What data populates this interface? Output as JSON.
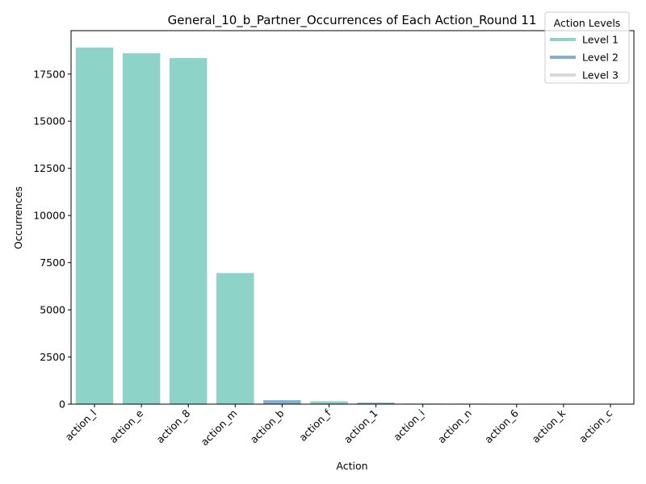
{
  "chart_data": {
    "type": "bar",
    "title": "General_10_b_Partner_Occurrences of Each Action_Round 11",
    "xlabel": "Action",
    "ylabel": "Occurrences",
    "categories": [
      "action_l",
      "action_e",
      "action_8",
      "action_m",
      "action_b",
      "action_f",
      "action_1",
      "action_i",
      "action_n",
      "action_6",
      "action_k",
      "action_c"
    ],
    "values": [
      18900,
      18600,
      18350,
      6950,
      210,
      150,
      80,
      30,
      25,
      20,
      8,
      5
    ],
    "levels": [
      1,
      1,
      1,
      1,
      2,
      1,
      2,
      1,
      1,
      1,
      1,
      1
    ],
    "ylim": [
      0,
      19800
    ],
    "yticks": [
      0,
      2500,
      5000,
      7500,
      10000,
      12500,
      15000,
      17500
    ],
    "ytick_labels": [
      "0",
      "2500",
      "5000",
      "7500",
      "10000",
      "12500",
      "15000",
      "17500"
    ],
    "grid": false,
    "legend": {
      "title": "Action Levels",
      "placement": "top-right",
      "entries": [
        {
          "label": "Level 1",
          "color": "#8dd3c7"
        },
        {
          "label": "Level 2",
          "color": "#80b1d3"
        },
        {
          "label": "Level 3",
          "color": "#d9d9d9"
        }
      ]
    }
  }
}
